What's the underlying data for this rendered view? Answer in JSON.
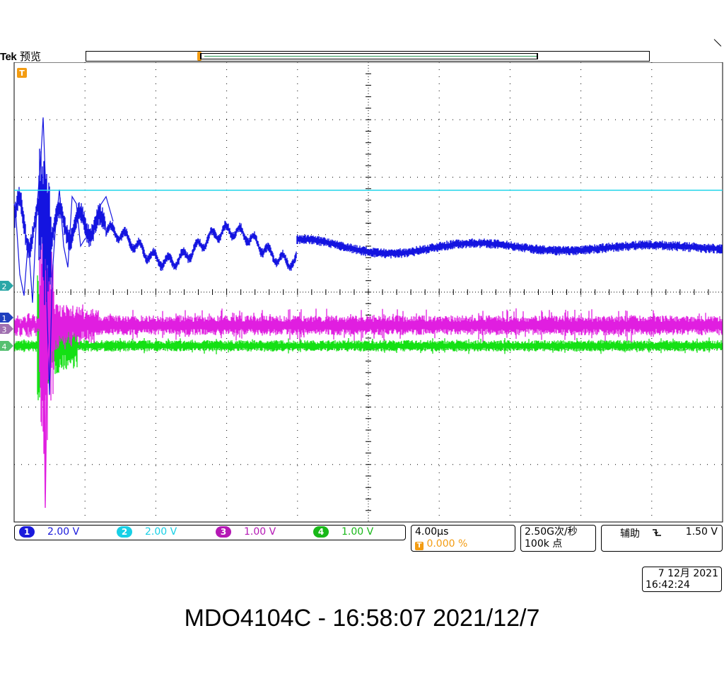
{
  "header": {
    "brand": "Tek",
    "mode": "预览"
  },
  "trigger_marker": "T",
  "channel_markers": [
    "2",
    "1",
    "3",
    "4"
  ],
  "channels": [
    {
      "number": "1",
      "scale": "2.00 V",
      "color": "#1a1adc"
    },
    {
      "number": "2",
      "scale": "2.00 V",
      "color": "#17d0e6"
    },
    {
      "number": "3",
      "scale": "1.00 V",
      "color": "#b518b5"
    },
    {
      "number": "4",
      "scale": "1.00 V",
      "color": "#18b818"
    }
  ],
  "colors": {
    "ch1_trace": "#1414e0",
    "ch2_trace": "#22d6ea",
    "ch3_trace": "#e01ee0",
    "ch4_trace": "#14e014",
    "trigger": "#f39c12",
    "marker2": "#2aa7a7",
    "marker1": "#1f3fbf",
    "marker3": "#a070b0",
    "marker4": "#55c070"
  },
  "horizontal": {
    "time_per_div": "4.00µs",
    "trigger_position": "0.000 %"
  },
  "acquisition": {
    "sample_rate": "2.50G次/秒",
    "record_length": "100k 点"
  },
  "trigger": {
    "source": "辅助",
    "slope_icon": "falling-edge-icon",
    "level": "1.50 V"
  },
  "datetime": {
    "date": "7 12月 2021",
    "time": "16:42:24"
  },
  "caption": "MDO4104C - 16:58:07   2021/12/7"
}
